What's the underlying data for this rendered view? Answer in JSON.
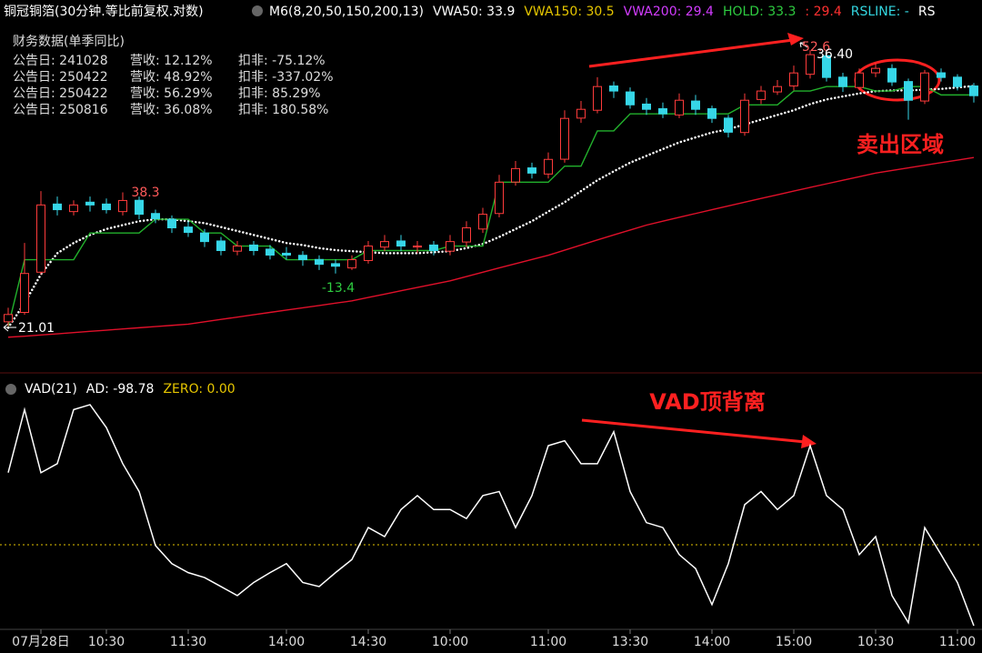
{
  "chart_data": [
    {
      "type": "candlestick",
      "title": "铜冠铜箔(30分钟.等比前复权.对数)",
      "indicator": "M6(8,20,50,150,200,13)",
      "legend": [
        {
          "text": "VWA50: 33.9",
          "color": "#ffffff"
        },
        {
          "text": "VWA150: 30.5",
          "color": "#e6c600"
        },
        {
          "text": "VWA200: 29.4",
          "color": "#d23cff"
        },
        {
          "text": "HOLD: 33.3",
          "color": "#2ecc40"
        },
        {
          "text": ": 29.4",
          "color": "#ff3030"
        },
        {
          "text": "RSLINE: -",
          "color": "#33d6e0"
        },
        {
          "text": "RS",
          "color": "#ffffff"
        }
      ],
      "finance": {
        "title": "财务数据(单季同比)",
        "rows": [
          [
            "公告日: 241028",
            "营收: 12.12%",
            "扣非: -75.12%"
          ],
          [
            "公告日: 250422",
            "营收: 48.92%",
            "扣非: -337.02%"
          ],
          [
            "公告日: 250422",
            "营收: 56.29%",
            "扣非: 85.29%"
          ],
          [
            "公告日: 250816",
            "营收: 36.08%",
            "扣非: 180.58%"
          ]
        ]
      },
      "open": [
        21.2,
        21.6,
        23.4,
        26.8,
        26.4,
        26.9,
        26.8,
        26.4,
        27.0,
        26.3,
        26.0,
        25.6,
        25.3,
        24.9,
        24.4,
        24.7,
        24.5,
        24.3,
        24.2,
        24.0,
        23.8,
        23.6,
        23.95,
        24.6,
        24.9,
        24.6,
        24.7,
        24.4,
        24.85,
        25.5,
        26.3,
        28.0,
        28.8,
        28.45,
        29.3,
        31.8,
        32.3,
        33.9,
        33.5,
        32.7,
        32.4,
        32.0,
        32.9,
        32.4,
        31.8,
        30.9,
        33.0,
        33.5,
        33.9,
        34.7,
        36.0,
        34.5,
        33.8,
        34.8,
        35.1,
        34.2,
        32.9,
        34.8,
        34.5,
        33.9
      ],
      "high": [
        21.8,
        24.8,
        27.5,
        27.2,
        27.0,
        27.2,
        27.1,
        27.43,
        27.2,
        26.5,
        26.2,
        25.9,
        25.5,
        25.1,
        24.9,
        24.9,
        24.7,
        24.6,
        24.4,
        24.2,
        24.0,
        24.2,
        24.9,
        25.2,
        25.2,
        24.9,
        24.9,
        25.2,
        25.9,
        26.6,
        28.4,
        29.2,
        29.1,
        29.7,
        32.3,
        32.9,
        34.5,
        34.2,
        33.8,
        33.1,
        32.8,
        33.4,
        33.3,
        32.6,
        32.0,
        33.4,
        33.9,
        34.3,
        35.3,
        36.4,
        36.2,
        34.8,
        35.1,
        35.5,
        35.4,
        34.4,
        35.0,
        35.1,
        34.7,
        34.1
      ],
      "low": [
        21.01,
        21.5,
        23.3,
        26.2,
        26.2,
        26.4,
        26.3,
        26.2,
        26.0,
        25.8,
        25.3,
        25.1,
        24.6,
        24.2,
        24.2,
        24.2,
        24.0,
        24.0,
        23.7,
        23.5,
        23.34,
        23.5,
        23.8,
        24.4,
        24.4,
        24.3,
        24.2,
        24.2,
        24.6,
        25.3,
        26.1,
        27.8,
        28.2,
        28.2,
        29.1,
        31.5,
        32.1,
        33.1,
        32.4,
        32.0,
        31.8,
        31.8,
        32.0,
        31.5,
        30.6,
        30.7,
        32.7,
        33.3,
        33.6,
        34.4,
        34.2,
        33.5,
        33.6,
        34.5,
        33.9,
        31.7,
        32.7,
        34.2,
        33.6,
        32.8
      ],
      "close": [
        21.51,
        23.34,
        26.75,
        26.5,
        26.75,
        26.75,
        26.5,
        26.99,
        26.26,
        26.03,
        25.56,
        25.33,
        24.87,
        24.43,
        24.65,
        24.43,
        24.21,
        24.21,
        23.99,
        23.77,
        23.68,
        23.99,
        24.65,
        24.87,
        24.65,
        24.65,
        24.43,
        24.87,
        25.56,
        26.26,
        27.99,
        28.76,
        28.5,
        29.29,
        31.78,
        32.36,
        33.86,
        33.56,
        32.65,
        32.36,
        32.07,
        32.95,
        32.36,
        31.78,
        30.92,
        32.95,
        33.56,
        33.86,
        34.79,
        36.08,
        34.48,
        33.86,
        34.79,
        35.11,
        34.17,
        32.95,
        34.79,
        34.48,
        33.86,
        33.25
      ],
      "up_color": "#ff3b3b",
      "down_color": "#36d6e7",
      "series": [
        {
          "color": "#ffffff",
          "style": "dotted",
          "values": [
            20.95,
            22.0,
            23.3,
            24.3,
            24.8,
            25.2,
            25.5,
            25.7,
            25.9,
            26.0,
            26.0,
            25.9,
            25.8,
            25.6,
            25.4,
            25.2,
            25.0,
            24.8,
            24.7,
            24.55,
            24.45,
            24.4,
            24.35,
            24.3,
            24.3,
            24.3,
            24.35,
            24.4,
            24.55,
            24.75,
            25.1,
            25.5,
            25.9,
            26.4,
            26.9,
            27.5,
            28.1,
            28.6,
            29.1,
            29.5,
            29.9,
            30.3,
            30.6,
            30.9,
            31.1,
            31.4,
            31.7,
            32.0,
            32.3,
            32.7,
            33.0,
            33.2,
            33.4,
            33.55,
            33.6,
            33.6,
            33.65,
            33.7,
            33.8,
            33.9
          ]
        },
        {
          "color": "#22b02c",
          "style": "solid",
          "values": [
            21.0,
            23.99,
            23.99,
            23.99,
            23.99,
            25.3,
            25.3,
            25.3,
            25.3,
            26.0,
            26.0,
            26.0,
            25.3,
            25.3,
            24.65,
            24.65,
            24.65,
            23.99,
            23.99,
            23.99,
            23.99,
            23.99,
            24.43,
            24.43,
            24.43,
            24.43,
            24.43,
            24.65,
            24.65,
            24.65,
            27.99,
            27.99,
            27.99,
            27.99,
            28.9,
            28.9,
            31.0,
            31.0,
            32.07,
            32.07,
            32.07,
            32.07,
            32.07,
            32.07,
            32.07,
            32.65,
            32.65,
            32.65,
            33.56,
            33.56,
            33.86,
            33.86,
            33.86,
            33.56,
            33.56,
            33.86,
            33.86,
            33.3,
            33.3,
            33.3
          ]
        },
        {
          "color": "#e0102a",
          "style": "solid",
          "values": [
            20.56,
            20.6,
            20.65,
            20.7,
            20.75,
            20.8,
            20.85,
            20.9,
            20.95,
            21.0,
            21.05,
            21.1,
            21.2,
            21.3,
            21.4,
            21.5,
            21.6,
            21.7,
            21.8,
            21.9,
            22.0,
            22.1,
            22.25,
            22.4,
            22.55,
            22.7,
            22.85,
            23.0,
            23.2,
            23.4,
            23.6,
            23.8,
            24.0,
            24.2,
            24.45,
            24.7,
            24.95,
            25.2,
            25.45,
            25.7,
            25.9,
            26.1,
            26.3,
            26.5,
            26.7,
            26.9,
            27.1,
            27.3,
            27.5,
            27.7,
            27.9,
            28.1,
            28.3,
            28.5,
            28.65,
            28.8,
            28.95,
            29.1,
            29.25,
            29.4
          ]
        }
      ],
      "ylim": [
        19.5,
        38.1
      ],
      "log_scale": true,
      "annotations": [
        {
          "text": "38.3",
          "color": "#ff5a5a"
        },
        {
          "text": "-13.4",
          "color": "#2ecc40"
        },
        {
          "text": "21.01",
          "color": "#ffffff"
        },
        {
          "text": "52.6",
          "color": "#ff5a5a"
        },
        {
          "text": "36.40",
          "color": "#ffffff"
        },
        {
          "text": "卖出区域",
          "color": "#ff2020",
          "bold": true
        }
      ]
    },
    {
      "type": "line",
      "name": "VAD(21)",
      "legend": [
        {
          "text": "AD: -98.78",
          "color": "#ffffff"
        },
        {
          "text": "ZERO: 0.00",
          "color": "#e6c600"
        }
      ],
      "categories": [
        null,
        null,
        "07月28日",
        null,
        null,
        null,
        "10:30",
        null,
        null,
        null,
        null,
        "11:30",
        null,
        null,
        null,
        null,
        null,
        "14:00",
        null,
        null,
        null,
        null,
        "14:30",
        null,
        null,
        null,
        null,
        "10:00",
        null,
        null,
        null,
        null,
        null,
        "11:00",
        null,
        null,
        null,
        null,
        "13:30",
        null,
        null,
        null,
        null,
        "14:00",
        null,
        null,
        null,
        null,
        "15:00",
        null,
        null,
        null,
        null,
        "10:30",
        null,
        null,
        null,
        null,
        "11:00",
        null
      ],
      "values": [
        88,
        165,
        88,
        99,
        165,
        171,
        143,
        99,
        65,
        -1,
        -23,
        -34,
        -40,
        -51,
        -62,
        -46,
        -34,
        -23,
        -46,
        -51,
        -34,
        -18,
        21,
        10,
        43,
        60,
        43,
        43,
        32,
        60,
        65,
        21,
        60,
        121,
        127,
        99,
        99,
        138,
        65,
        27,
        21,
        -12,
        -29,
        -73,
        -23,
        49,
        65,
        43,
        60,
        121,
        60,
        43,
        -12,
        10,
        -62,
        -95,
        21,
        -12,
        -46,
        -98.78
      ],
      "color": "#ffffff",
      "zero": 0,
      "zero_color": "#e6c600",
      "ylim": [
        -101,
        176.5
      ],
      "annotations": [
        {
          "text": "VAD顶背离",
          "color": "#ff2020",
          "bold": true
        }
      ]
    }
  ]
}
